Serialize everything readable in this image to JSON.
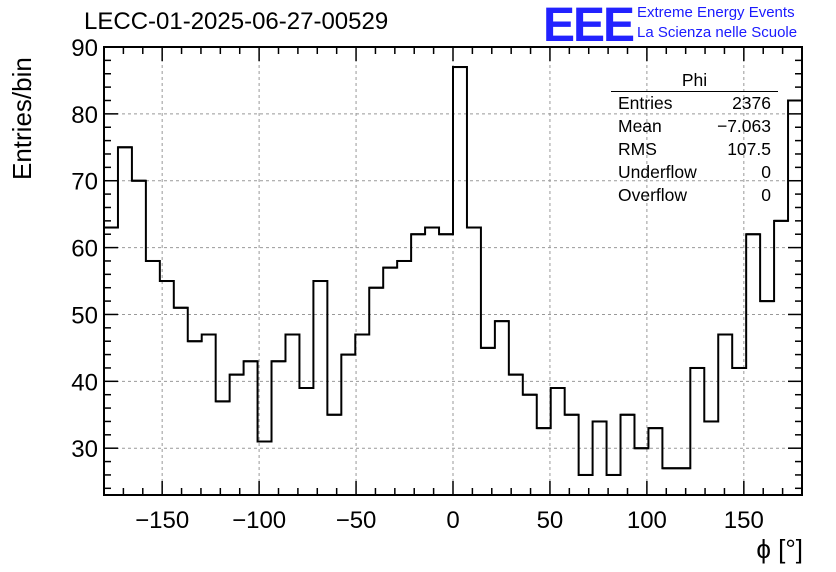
{
  "chart_data": {
    "type": "histogram",
    "title": "LECC-01-2025-06-27-00529",
    "xlabel": "ϕ [°]",
    "ylabel": "Entries/bin",
    "xlim": [
      -180,
      180
    ],
    "ylim": [
      23,
      90
    ],
    "bin_width": 7.2,
    "x_ticks": [
      -150,
      -100,
      -50,
      0,
      50,
      100,
      150
    ],
    "x_tick_labels": [
      "−150",
      "−100",
      "−50",
      "0",
      "50",
      "100",
      "150"
    ],
    "y_ticks": [
      30,
      40,
      50,
      60,
      70,
      80,
      90
    ],
    "y_tick_labels": [
      "30",
      "40",
      "50",
      "60",
      "70",
      "80",
      "90"
    ],
    "grid": true,
    "values": [
      63,
      75,
      70,
      58,
      55,
      51,
      46,
      47,
      37,
      41,
      43,
      31,
      43,
      47,
      39,
      55,
      35,
      44,
      47,
      54,
      57,
      58,
      62,
      63,
      62,
      87,
      63,
      45,
      49,
      41,
      38,
      33,
      39,
      35,
      26,
      34,
      26,
      35,
      30,
      33,
      27,
      27,
      42,
      34,
      47,
      42,
      62,
      52,
      64,
      82
    ]
  },
  "stats_box": {
    "title": "Phi",
    "rows": [
      {
        "label": "Entries",
        "value": "2376"
      },
      {
        "label": "Mean",
        "value": "−7.063"
      },
      {
        "label": "RMS",
        "value": "107.5"
      },
      {
        "label": "Underflow",
        "value": "0"
      },
      {
        "label": "Overflow",
        "value": "0"
      }
    ]
  },
  "logo": {
    "mark": "EEE",
    "line1": "Extreme Energy Events",
    "line2": "La Scienza nelle Scuole"
  }
}
